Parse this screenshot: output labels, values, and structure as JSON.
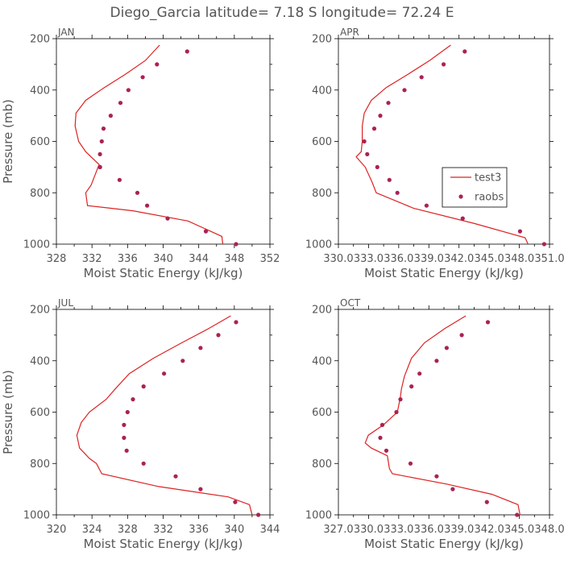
{
  "figure": {
    "title": "Diego_Garcia  latitude= 7.18 S longitude= 72.24 E",
    "colors": {
      "model": "#dd2222",
      "observations": "#aa2255",
      "text": "#555555"
    }
  },
  "chart_data": [
    {
      "type": "line",
      "panel": "JAN",
      "xlabel": "Moist Static Energy (kJ/kg)",
      "ylabel": "Pressure (mb)",
      "xlim": [
        328,
        352
      ],
      "ylim": [
        1000,
        200
      ],
      "xticks": [
        "328",
        "332",
        "336",
        "340",
        "344",
        "348",
        "352"
      ],
      "yticks": [
        "200",
        "400",
        "600",
        "800",
        "1000"
      ],
      "grid": false,
      "legend": null,
      "series": [
        {
          "name": "test3",
          "kind": "line",
          "x": [
            339.6,
            338.0,
            335.7,
            333.4,
            331.3,
            330.2,
            330.1,
            330.5,
            331.3,
            332.8,
            331.9,
            331.3,
            331.5,
            336.6,
            342.8,
            346.6,
            346.7
          ],
          "y": [
            225,
            285,
            340,
            390,
            440,
            490,
            540,
            600,
            640,
            690,
            770,
            800,
            850,
            870,
            910,
            970,
            1000
          ]
        },
        {
          "name": "raobs",
          "kind": "points",
          "x": [
            342.7,
            339.3,
            337.7,
            336.1,
            335.2,
            334.1,
            333.3,
            333.1,
            332.9,
            332.9,
            332.9,
            335.1,
            337.1,
            338.2,
            340.5,
            344.8,
            348.2
          ],
          "y": [
            250,
            300,
            350,
            400,
            450,
            500,
            550,
            600,
            650,
            700,
            700,
            750,
            800,
            850,
            900,
            950,
            1000
          ]
        }
      ]
    },
    {
      "type": "line",
      "panel": "APR",
      "xlabel": "Moist Static Energy (kJ/kg)",
      "ylabel": "",
      "xlim": [
        330.03,
        351.03
      ],
      "ylim": [
        1000,
        200
      ],
      "xticks": [
        "330.0",
        "333.0",
        "336.0",
        "339.0",
        "342.0",
        "345.0",
        "348.0",
        "351.0"
      ],
      "yticks": [
        "200",
        "400",
        "600",
        "800",
        "1000"
      ],
      "grid": false,
      "legend": "right",
      "series": [
        {
          "name": "test3",
          "kind": "line",
          "x": [
            341.2,
            339.1,
            336.9,
            334.8,
            333.3,
            332.6,
            332.4,
            332.4,
            332.3,
            331.8,
            332.7,
            333.4,
            333.8,
            337.5,
            343.6,
            348.6,
            348.9
          ],
          "y": [
            225,
            285,
            340,
            390,
            440,
            490,
            540,
            600,
            640,
            660,
            700,
            760,
            800,
            860,
            920,
            975,
            1000
          ]
        },
        {
          "name": "raobs",
          "kind": "points",
          "x": [
            342.6,
            340.5,
            338.3,
            336.6,
            335.0,
            334.2,
            333.6,
            332.6,
            332.9,
            333.9,
            335.1,
            335.9,
            338.8,
            342.4,
            348.1,
            350.5
          ],
          "y": [
            250,
            300,
            350,
            400,
            450,
            500,
            550,
            600,
            650,
            700,
            750,
            800,
            850,
            900,
            950,
            1000
          ]
        }
      ]
    },
    {
      "type": "line",
      "panel": "JUL",
      "xlabel": "Moist Static Energy (kJ/kg)",
      "ylabel": "Pressure (mb)",
      "xlim": [
        320,
        344
      ],
      "ylim": [
        1000,
        200
      ],
      "xticks": [
        "320",
        "324",
        "328",
        "332",
        "336",
        "340",
        "344"
      ],
      "yticks": [
        "200",
        "400",
        "600",
        "800",
        "1000"
      ],
      "grid": false,
      "legend": null,
      "series": [
        {
          "name": "test3",
          "kind": "line",
          "x": [
            339.6,
            337.1,
            334.1,
            330.9,
            328.2,
            326.6,
            325.6,
            323.7,
            322.8,
            322.3,
            322.6,
            323.7,
            324.5,
            325.1,
            331.5,
            339.3,
            341.7,
            342.0
          ],
          "y": [
            225,
            275,
            330,
            390,
            450,
            510,
            550,
            600,
            640,
            690,
            740,
            780,
            800,
            840,
            890,
            930,
            960,
            1000
          ]
        },
        {
          "name": "raobs",
          "kind": "points",
          "x": [
            340.2,
            338.2,
            336.2,
            334.2,
            332.1,
            329.8,
            328.6,
            328.0,
            327.6,
            327.6,
            327.9,
            329.8,
            333.4,
            336.2,
            340.1,
            342.7
          ],
          "y": [
            250,
            300,
            350,
            400,
            450,
            500,
            550,
            600,
            650,
            700,
            750,
            800,
            850,
            900,
            950,
            1000
          ]
        }
      ]
    },
    {
      "type": "line",
      "panel": "OCT",
      "xlabel": "Moist Static Energy (kJ/kg)",
      "ylabel": "",
      "xlim": [
        327.03,
        348.03
      ],
      "ylim": [
        1000,
        200
      ],
      "xticks": [
        "327.0",
        "330.0",
        "333.0",
        "336.0",
        "339.0",
        "342.0",
        "345.0",
        "348.0"
      ],
      "yticks": [
        "200",
        "400",
        "600",
        "800",
        "1000"
      ],
      "grid": false,
      "legend": null,
      "series": [
        {
          "name": "test3",
          "kind": "line",
          "x": [
            339.7,
            337.6,
            335.6,
            334.3,
            333.6,
            333.3,
            333.2,
            332.9,
            331.5,
            330.0,
            329.7,
            330.3,
            331.9,
            332.1,
            332.4,
            337.8,
            342.3,
            344.9,
            345.1
          ],
          "y": [
            225,
            275,
            330,
            390,
            460,
            510,
            540,
            600,
            650,
            690,
            720,
            740,
            770,
            820,
            840,
            880,
            920,
            960,
            1000
          ]
        },
        {
          "name": "raobs",
          "kind": "points",
          "x": [
            341.9,
            339.3,
            337.8,
            336.8,
            335.1,
            334.3,
            333.2,
            332.8,
            331.4,
            331.2,
            331.8,
            334.2,
            336.8,
            338.4,
            341.8,
            344.8
          ],
          "y": [
            250,
            300,
            350,
            400,
            450,
            500,
            550,
            600,
            650,
            700,
            750,
            800,
            850,
            900,
            950,
            1000
          ]
        }
      ]
    }
  ]
}
